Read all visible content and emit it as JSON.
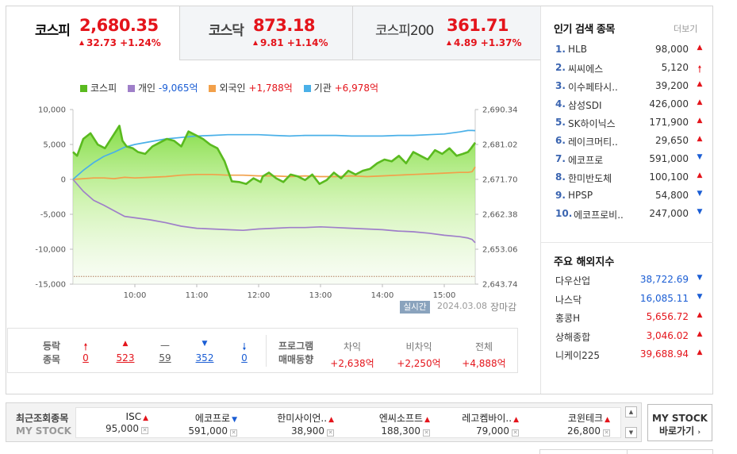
{
  "tabs": [
    {
      "name": "코스피",
      "value": "2,680.35",
      "change": "32.73 +1.24%",
      "active": true
    },
    {
      "name": "코스닥",
      "value": "873.18",
      "change": "9.81 +1.14%",
      "active": false
    },
    {
      "name": "코스피200",
      "value": "361.71",
      "change": "4.89 +1.37%",
      "active": false
    }
  ],
  "legend": {
    "kospi": "코스피",
    "individual_label": "개인",
    "individual_value": "-9,065억",
    "foreign_label": "외국인",
    "foreign_value": "+1,788억",
    "institution_label": "기관",
    "institution_value": "+6,978억"
  },
  "colors": {
    "kospi": "#5aba1f",
    "individual": "#9f7fc9",
    "foreign": "#f2a04a",
    "institution": "#4ab0e8",
    "up": "#e4141b",
    "down": "#1a5dd4"
  },
  "chart_data": {
    "type": "line",
    "x_ticks": [
      "10:00",
      "11:00",
      "12:00",
      "13:00",
      "14:00",
      "15:00"
    ],
    "y_left_ticks": [
      "10,000",
      "5,000",
      "0",
      "-5,000",
      "-10,000",
      "-15,000"
    ],
    "y_right_ticks": [
      "2,690.34",
      "2,681.02",
      "2,671.70",
      "2,662.38",
      "2,653.06",
      "2,643.74"
    ],
    "y_left_range": [
      -15000,
      10000
    ],
    "y_right_range": [
      2643.74,
      2690.34
    ],
    "x_range": [
      "09:00",
      "15:30"
    ],
    "series": [
      {
        "name": "코스피",
        "axis": "right",
        "x": [
          "09:00",
          "09:04",
          "09:10",
          "09:17",
          "09:24",
          "09:31",
          "09:38",
          "09:45",
          "09:48",
          "09:52",
          "09:58",
          "10:03",
          "10:10",
          "10:17",
          "10:24",
          "10:31",
          "10:38",
          "10:45",
          "10:52",
          "10:59",
          "11:06",
          "11:13",
          "11:20",
          "11:27",
          "11:34",
          "11:41",
          "11:48",
          "11:55",
          "12:02",
          "12:04",
          "12:10",
          "12:17",
          "12:24",
          "12:31",
          "12:38",
          "12:45",
          "12:52",
          "12:59",
          "13:06",
          "13:13",
          "13:20",
          "13:27",
          "13:34",
          "13:41",
          "13:48",
          "13:55",
          "14:02",
          "14:09",
          "14:16",
          "14:23",
          "14:30",
          "14:37",
          "14:44",
          "14:51",
          "14:58",
          "15:05",
          "15:12",
          "15:18",
          "15:23",
          "15:26",
          "15:30"
        ],
        "values": [
          2679.0,
          2678.0,
          2682.5,
          2684.0,
          2681.0,
          2680.0,
          2683.0,
          2686.0,
          2682.0,
          2680.5,
          2680.0,
          2679.0,
          2678.5,
          2680.5,
          2681.5,
          2682.5,
          2682.0,
          2680.5,
          2684.5,
          2683.5,
          2682.5,
          2681.0,
          2680.0,
          2676.5,
          2671.2,
          2671.0,
          2670.5,
          2672.0,
          2671.0,
          2672.5,
          2673.5,
          2672.0,
          2671.0,
          2673.0,
          2672.5,
          2671.5,
          2673.0,
          2670.5,
          2671.5,
          2673.5,
          2672.0,
          2674.0,
          2673.0,
          2674.0,
          2674.5,
          2676.0,
          2677.0,
          2676.5,
          2678.0,
          2676.0,
          2679.0,
          2678.0,
          2677.0,
          2679.5,
          2678.5,
          2680.0,
          2678.0,
          2678.5,
          2679.0,
          2680.0,
          2681.5
        ]
      },
      {
        "name": "개인",
        "axis": "left",
        "x": [
          "09:00",
          "09:10",
          "09:20",
          "09:30",
          "09:40",
          "09:50",
          "10:00",
          "10:15",
          "10:30",
          "10:45",
          "11:00",
          "11:15",
          "11:30",
          "11:45",
          "12:00",
          "12:15",
          "12:30",
          "12:45",
          "13:00",
          "13:15",
          "13:30",
          "13:45",
          "14:00",
          "14:15",
          "14:30",
          "14:45",
          "15:00",
          "15:15",
          "15:23",
          "15:27",
          "15:30"
        ],
        "values": [
          0,
          -1700,
          -3000,
          -3700,
          -4500,
          -5300,
          -5500,
          -5800,
          -6200,
          -6700,
          -7000,
          -7100,
          -7200,
          -7300,
          -7100,
          -7000,
          -6900,
          -6900,
          -6800,
          -6900,
          -7000,
          -7100,
          -7200,
          -7400,
          -7500,
          -7700,
          -8000,
          -8200,
          -8400,
          -8600,
          -9065
        ]
      },
      {
        "name": "외국인",
        "axis": "left",
        "x": [
          "09:00",
          "09:10",
          "09:20",
          "09:30",
          "09:40",
          "09:50",
          "10:00",
          "10:15",
          "10:30",
          "10:45",
          "11:00",
          "11:15",
          "11:30",
          "11:45",
          "12:00",
          "12:15",
          "12:30",
          "12:45",
          "13:00",
          "13:15",
          "13:30",
          "13:45",
          "14:00",
          "14:15",
          "14:30",
          "14:45",
          "15:00",
          "15:15",
          "15:23",
          "15:27",
          "15:30"
        ],
        "values": [
          0,
          100,
          200,
          200,
          100,
          300,
          200,
          300,
          400,
          600,
          700,
          700,
          600,
          600,
          500,
          500,
          400,
          500,
          400,
          400,
          500,
          400,
          500,
          600,
          700,
          800,
          900,
          1000,
          1000,
          1100,
          1788
        ]
      },
      {
        "name": "기관",
        "axis": "left",
        "x": [
          "09:00",
          "09:10",
          "09:20",
          "09:30",
          "09:40",
          "09:50",
          "10:00",
          "10:15",
          "10:30",
          "10:45",
          "11:00",
          "11:15",
          "11:30",
          "11:45",
          "12:00",
          "12:15",
          "12:30",
          "12:45",
          "13:00",
          "13:15",
          "13:30",
          "13:45",
          "14:00",
          "14:15",
          "14:30",
          "14:45",
          "15:00",
          "15:15",
          "15:23",
          "15:27",
          "15:30"
        ],
        "values": [
          0,
          1300,
          2400,
          3300,
          3900,
          4600,
          5000,
          5400,
          5800,
          6000,
          6200,
          6300,
          6400,
          6400,
          6400,
          6300,
          6200,
          6300,
          6300,
          6300,
          6200,
          6200,
          6200,
          6300,
          6300,
          6400,
          6500,
          6800,
          7000,
          7000,
          6978
        ]
      }
    ]
  },
  "realtime_label": "실시간",
  "date": "2024.03.08",
  "market_status": "장마감",
  "breadth": {
    "label_line1": "등락",
    "label_line2": "종목",
    "items": [
      {
        "icon": "upper-limit-icon",
        "value": "0",
        "color": "up"
      },
      {
        "icon": "rise-icon",
        "value": "523",
        "color": "up"
      },
      {
        "icon": "unchanged-icon",
        "value": "59",
        "color": "flat"
      },
      {
        "icon": "fall-icon",
        "value": "352",
        "color": "down"
      },
      {
        "icon": "lower-limit-icon",
        "value": "0",
        "color": "down"
      }
    ],
    "program_label1": "프로그램",
    "program_label2": "매매동향",
    "program": [
      {
        "label": "차익",
        "value": "+2,638억"
      },
      {
        "label": "비차익",
        "value": "+2,250억"
      },
      {
        "label": "전체",
        "value": "+4,888억"
      }
    ]
  },
  "popular": {
    "title": "인기 검색 종목",
    "more": "더보기",
    "items": [
      {
        "rank": "1.",
        "name": "HLB",
        "price": "98,000",
        "dir": "up"
      },
      {
        "rank": "2.",
        "name": "씨씨에스",
        "price": "5,120",
        "dir": "upper"
      },
      {
        "rank": "3.",
        "name": "이수페타시..",
        "price": "39,200",
        "dir": "up"
      },
      {
        "rank": "4.",
        "name": "삼성SDI",
        "price": "426,000",
        "dir": "up"
      },
      {
        "rank": "5.",
        "name": "SK하이닉스",
        "price": "171,900",
        "dir": "up"
      },
      {
        "rank": "6.",
        "name": "레이크머티..",
        "price": "29,650",
        "dir": "up"
      },
      {
        "rank": "7.",
        "name": "에코프로",
        "price": "591,000",
        "dir": "down"
      },
      {
        "rank": "8.",
        "name": "한미반도체",
        "price": "100,100",
        "dir": "up"
      },
      {
        "rank": "9.",
        "name": "HPSP",
        "price": "54,800",
        "dir": "down"
      },
      {
        "rank": "10.",
        "name": "에코프로비..",
        "price": "247,000",
        "dir": "down"
      }
    ]
  },
  "global": {
    "title": "주요 해외지수",
    "items": [
      {
        "name": "다우산업",
        "value": "38,722.69",
        "dir": "down"
      },
      {
        "name": "나스닥",
        "value": "16,085.11",
        "dir": "down"
      },
      {
        "name": "홍콩H",
        "value": "5,656.72",
        "dir": "up"
      },
      {
        "name": "상해종합",
        "value": "3,046.02",
        "dir": "up"
      },
      {
        "name": "니케이225",
        "value": "39,688.94",
        "dir": "up"
      }
    ]
  },
  "recent": {
    "title": "최근조회종목",
    "subtitle": "MY STOCK",
    "items": [
      {
        "name": "ISC",
        "price": "95,000",
        "dir": "up"
      },
      {
        "name": "에코프로",
        "price": "591,000",
        "dir": "down"
      },
      {
        "name": "한미사이언..",
        "price": "38,900",
        "dir": "up"
      },
      {
        "name": "엔씨소프트",
        "price": "188,300",
        "dir": "up"
      },
      {
        "name": "레고켐바이..",
        "price": "79,000",
        "dir": "up"
      },
      {
        "name": "코윈테크",
        "price": "26,800",
        "dir": "up"
      }
    ],
    "button_line1": "MY STOCK",
    "button_line2": "바로가기"
  }
}
